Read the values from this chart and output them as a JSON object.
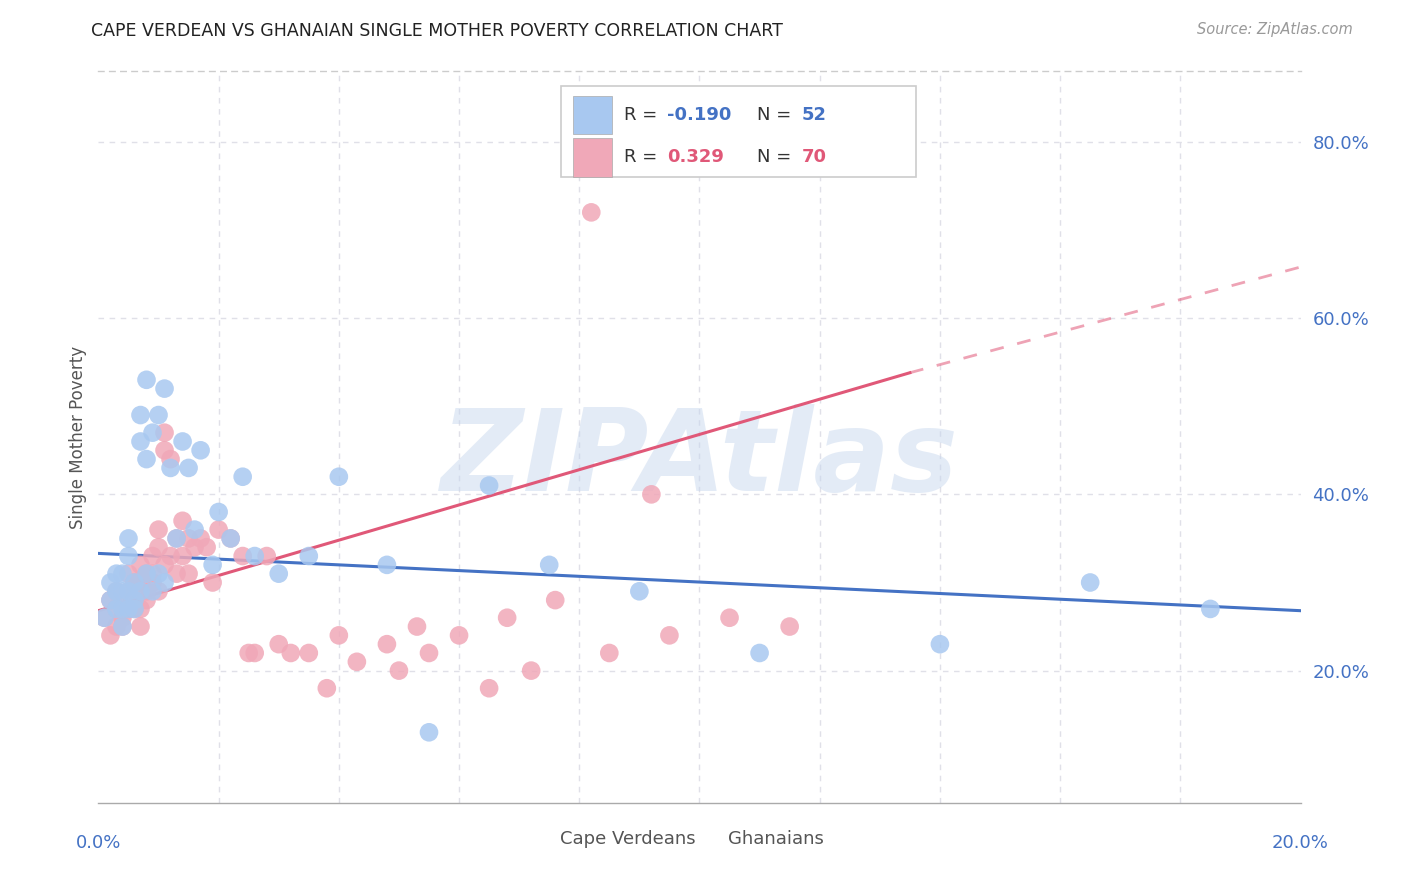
{
  "title": "CAPE VERDEAN VS GHANAIAN SINGLE MOTHER POVERTY CORRELATION CHART",
  "source": "Source: ZipAtlas.com",
  "ylabel": "Single Mother Poverty",
  "right_yticks": [
    "20.0%",
    "40.0%",
    "60.0%",
    "80.0%"
  ],
  "right_ytick_vals": [
    0.2,
    0.4,
    0.6,
    0.8
  ],
  "xlim": [
    0.0,
    0.2
  ],
  "ylim": [
    0.05,
    0.88
  ],
  "cape_verdean_color": "#A8C8F0",
  "ghanaian_color": "#F0A8B8",
  "cape_verdean_line_color": "#4472C4",
  "ghanaian_line_color": "#E05878",
  "watermark_text": "ZIPAtlas",
  "watermark_color": "#C8D8EE",
  "background_color": "#FFFFFF",
  "grid_color": "#E0E0E8",
  "grid_style": "dotted",
  "cv_trendline": [
    0.0,
    0.333,
    0.2,
    0.268
  ],
  "gh_trendline_solid": [
    0.0,
    0.268,
    0.135,
    0.538
  ],
  "gh_trendline_dashed": [
    0.135,
    0.538,
    0.2,
    0.658
  ],
  "cv_x": [
    0.001,
    0.002,
    0.002,
    0.003,
    0.003,
    0.003,
    0.004,
    0.004,
    0.004,
    0.004,
    0.005,
    0.005,
    0.005,
    0.005,
    0.006,
    0.006,
    0.006,
    0.007,
    0.007,
    0.007,
    0.008,
    0.008,
    0.008,
    0.009,
    0.009,
    0.01,
    0.01,
    0.011,
    0.011,
    0.012,
    0.013,
    0.014,
    0.015,
    0.016,
    0.017,
    0.019,
    0.02,
    0.022,
    0.024,
    0.026,
    0.03,
    0.035,
    0.04,
    0.048,
    0.055,
    0.065,
    0.075,
    0.09,
    0.11,
    0.14,
    0.165,
    0.185
  ],
  "cv_y": [
    0.26,
    0.28,
    0.3,
    0.27,
    0.29,
    0.31,
    0.25,
    0.27,
    0.29,
    0.31,
    0.27,
    0.29,
    0.33,
    0.35,
    0.28,
    0.3,
    0.27,
    0.46,
    0.49,
    0.29,
    0.31,
    0.53,
    0.44,
    0.29,
    0.47,
    0.31,
    0.49,
    0.52,
    0.3,
    0.43,
    0.35,
    0.46,
    0.43,
    0.36,
    0.45,
    0.32,
    0.38,
    0.35,
    0.42,
    0.33,
    0.31,
    0.33,
    0.42,
    0.32,
    0.13,
    0.41,
    0.32,
    0.29,
    0.22,
    0.23,
    0.3,
    0.27
  ],
  "gh_x": [
    0.001,
    0.002,
    0.002,
    0.003,
    0.003,
    0.003,
    0.004,
    0.004,
    0.004,
    0.005,
    0.005,
    0.005,
    0.006,
    0.006,
    0.006,
    0.007,
    0.007,
    0.007,
    0.007,
    0.008,
    0.008,
    0.008,
    0.009,
    0.009,
    0.009,
    0.01,
    0.01,
    0.01,
    0.011,
    0.011,
    0.011,
    0.012,
    0.012,
    0.013,
    0.013,
    0.014,
    0.014,
    0.015,
    0.015,
    0.016,
    0.017,
    0.018,
    0.019,
    0.02,
    0.022,
    0.024,
    0.026,
    0.028,
    0.032,
    0.038,
    0.043,
    0.048,
    0.053,
    0.06,
    0.068,
    0.076,
    0.085,
    0.095,
    0.105,
    0.115,
    0.025,
    0.03,
    0.035,
    0.04,
    0.05,
    0.055,
    0.065,
    0.072,
    0.082,
    0.092
  ],
  "gh_y": [
    0.26,
    0.24,
    0.28,
    0.25,
    0.27,
    0.29,
    0.26,
    0.28,
    0.25,
    0.27,
    0.29,
    0.31,
    0.27,
    0.3,
    0.28,
    0.27,
    0.3,
    0.25,
    0.32,
    0.29,
    0.31,
    0.28,
    0.3,
    0.33,
    0.31,
    0.36,
    0.34,
    0.29,
    0.47,
    0.45,
    0.32,
    0.44,
    0.33,
    0.35,
    0.31,
    0.37,
    0.33,
    0.31,
    0.35,
    0.34,
    0.35,
    0.34,
    0.3,
    0.36,
    0.35,
    0.33,
    0.22,
    0.33,
    0.22,
    0.18,
    0.21,
    0.23,
    0.25,
    0.24,
    0.26,
    0.28,
    0.22,
    0.24,
    0.26,
    0.25,
    0.22,
    0.23,
    0.22,
    0.24,
    0.2,
    0.22,
    0.18,
    0.2,
    0.72,
    0.4
  ]
}
